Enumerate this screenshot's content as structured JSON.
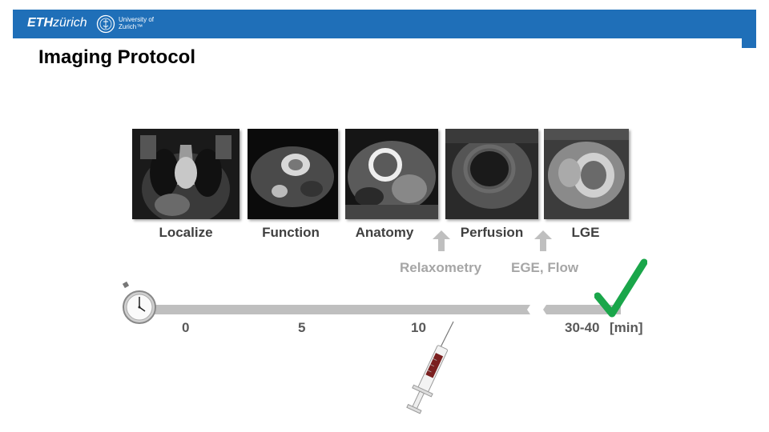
{
  "header": {
    "eth_logo_bold": "ETH",
    "eth_logo_rest": "zürich",
    "uzh_line1": "University of",
    "uzh_line2": "Zurich™"
  },
  "title": "Imaging Protocol",
  "steps": [
    {
      "label": "Localize"
    },
    {
      "label": "Function"
    },
    {
      "label": "Anatomy"
    },
    {
      "label": "Perfusion"
    },
    {
      "label": "LGE"
    }
  ],
  "insertions": [
    {
      "label": "Relaxometry"
    },
    {
      "label": "EGE, Flow"
    }
  ],
  "timeline": {
    "ticks": [
      "0",
      "5",
      "10",
      "30-40"
    ],
    "unit": "[min]"
  },
  "colors": {
    "header": "#1f6fb8",
    "check": "#1aa64a",
    "timeline": "#bfbfbf",
    "muted": "#a6a6a6"
  },
  "icons": [
    "stopwatch-icon",
    "syringe-icon",
    "checkmark-icon",
    "up-arrow-icon"
  ]
}
